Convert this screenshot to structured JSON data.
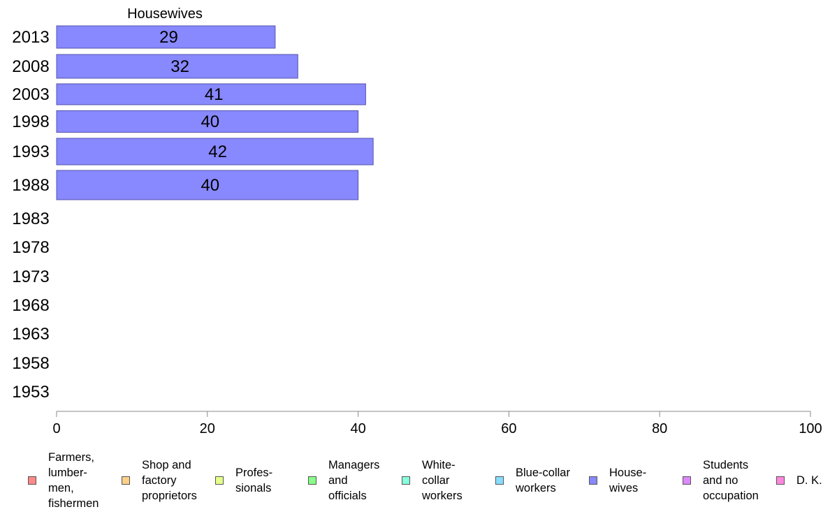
{
  "chart_data": {
    "type": "bar",
    "orientation": "horizontal",
    "title": "Housewives",
    "categories": [
      "2013",
      "2008",
      "2003",
      "1998",
      "1993",
      "1988",
      "1983",
      "1978",
      "1973",
      "1968",
      "1963",
      "1958",
      "1953"
    ],
    "values": [
      29,
      32,
      41,
      40,
      42,
      40,
      null,
      null,
      null,
      null,
      null,
      null,
      null
    ],
    "xlim": [
      0,
      100
    ],
    "xticks": [
      "0",
      "20",
      "40",
      "60",
      "80",
      "100"
    ],
    "bar_color": "#8888ff",
    "legend": [
      {
        "label": "Farmers,\nlumber-\nmen,\nfishermen",
        "color": "#ff8888"
      },
      {
        "label": "Shop and\nfactory\nproprietors",
        "color": "#ffd088"
      },
      {
        "label": "Profes-\nsionals",
        "color": "#e6ff88"
      },
      {
        "label": "Managers\nand\nofficials",
        "color": "#88ff88"
      },
      {
        "label": "White-\ncollar\nworkers",
        "color": "#88ffdd"
      },
      {
        "label": "Blue-collar\nworkers",
        "color": "#88ddff"
      },
      {
        "label": "House-\nwives",
        "color": "#8888ff"
      },
      {
        "label": "Students\nand no\noccupation",
        "color": "#dd88ff"
      },
      {
        "label": "D. K.",
        "color": "#ff88dd"
      }
    ],
    "legend_position": "bottom"
  }
}
